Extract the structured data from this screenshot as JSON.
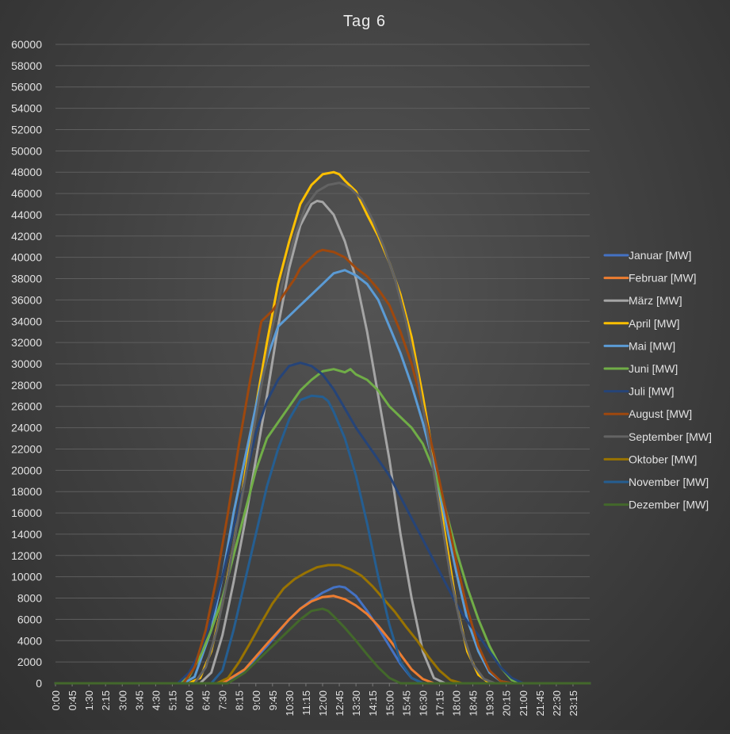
{
  "chart_data": {
    "type": "line",
    "title": "Tag 6",
    "xlabel": "",
    "ylabel": "",
    "ylim": [
      0,
      60000
    ],
    "y_ticks": [
      0,
      2000,
      4000,
      6000,
      8000,
      10000,
      12000,
      14000,
      16000,
      18000,
      20000,
      22000,
      24000,
      26000,
      28000,
      30000,
      32000,
      34000,
      36000,
      38000,
      40000,
      42000,
      44000,
      46000,
      48000,
      50000,
      52000,
      54000,
      56000,
      58000,
      60000
    ],
    "x_tick_labels": [
      "0:00",
      "0:45",
      "1:30",
      "2:15",
      "3:00",
      "3:45",
      "4:30",
      "5:15",
      "6:00",
      "6:45",
      "7:30",
      "8:15",
      "9:00",
      "9:45",
      "10:30",
      "11:15",
      "12:00",
      "12:45",
      "13:30",
      "14:15",
      "15:00",
      "15:45",
      "16:30",
      "17:15",
      "18:00",
      "18:45",
      "19:30",
      "20:15",
      "21:00",
      "21:45",
      "22:30",
      "23:15"
    ],
    "x_unit": "hour of day",
    "xlim": [
      0,
      24
    ],
    "grid": true,
    "legend_position": "right",
    "series": [
      {
        "name": "Januar [MW]",
        "color": "#4472C4",
        "x": [
          0,
          7.5,
          8.5,
          9.5,
          10.5,
          11,
          11.5,
          12,
          12.5,
          12.75,
          13,
          13.5,
          14,
          14.5,
          15,
          15.5,
          16,
          16.5,
          24
        ],
        "values": [
          0,
          0,
          1200,
          3500,
          6000,
          7000,
          7800,
          8500,
          9000,
          9100,
          9000,
          8200,
          6800,
          5200,
          3500,
          1800,
          500,
          0,
          0
        ]
      },
      {
        "name": "Februar [MW]",
        "color": "#ED7D31",
        "x": [
          0,
          7.5,
          8.5,
          9.5,
          10.5,
          11,
          11.5,
          12,
          12.5,
          13,
          13.5,
          14,
          14.5,
          15,
          15.5,
          16,
          16.5,
          17,
          24
        ],
        "values": [
          0,
          0,
          1300,
          3700,
          6000,
          7000,
          7700,
          8100,
          8200,
          7900,
          7300,
          6500,
          5400,
          4100,
          2700,
          1300,
          400,
          0,
          0
        ]
      },
      {
        "name": "März [MW]",
        "color": "#A5A5A5",
        "x": [
          0,
          6.5,
          7,
          7.5,
          8,
          8.5,
          9,
          9.5,
          10,
          10.5,
          11,
          11.5,
          11.75,
          12,
          12.5,
          13,
          13.5,
          14,
          14.5,
          15,
          15.5,
          16,
          16.5,
          17,
          17.5,
          18,
          24
        ],
        "values": [
          0,
          0,
          1000,
          4500,
          9500,
          15000,
          21000,
          27000,
          33500,
          39000,
          43000,
          45000,
          45300,
          45200,
          44000,
          41500,
          38000,
          33000,
          27000,
          21000,
          14000,
          8000,
          3000,
          500,
          0,
          0,
          0
        ]
      },
      {
        "name": "April [MW]",
        "color": "#FFC000",
        "x": [
          0,
          6,
          6.5,
          7,
          7.5,
          8,
          8.5,
          9,
          9.5,
          10,
          10.5,
          11,
          11.5,
          12,
          12.5,
          12.75,
          13,
          13.5,
          14,
          14.5,
          15,
          15.5,
          16,
          16.5,
          17,
          17.5,
          18,
          18.5,
          19,
          19.5,
          20,
          20.5,
          21,
          24
        ],
        "values": [
          0,
          0,
          500,
          3000,
          7500,
          13000,
          19500,
          26000,
          32000,
          37500,
          41500,
          45000,
          46800,
          47800,
          48000,
          47800,
          47200,
          46200,
          44000,
          42000,
          39500,
          36500,
          32500,
          27000,
          21000,
          14000,
          7500,
          3000,
          800,
          0,
          0,
          0,
          0,
          0
        ]
      },
      {
        "name": "Mai [MW]",
        "color": "#5B9BD5",
        "x": [
          0,
          5.75,
          6.25,
          7,
          7.5,
          8,
          8.5,
          9,
          9.5,
          10,
          10.5,
          11,
          11.5,
          12,
          12.5,
          13,
          13.5,
          14,
          14.5,
          15,
          15.5,
          16,
          16.5,
          17,
          17.5,
          18,
          18.5,
          19,
          19.5,
          20,
          20.5,
          21,
          24
        ],
        "values": [
          0,
          0,
          600,
          5000,
          10000,
          16000,
          21000,
          26000,
          30500,
          33500,
          34500,
          35500,
          36500,
          37500,
          38500,
          38800,
          38300,
          37500,
          36000,
          33500,
          31000,
          28000,
          24500,
          20500,
          15500,
          10500,
          6000,
          3000,
          1000,
          200,
          0,
          0,
          0
        ]
      },
      {
        "name": "Juni [MW]",
        "color": "#70AD47",
        "x": [
          0,
          5.5,
          6,
          6.5,
          7,
          7.5,
          8,
          8.5,
          9,
          9.5,
          10,
          10.5,
          11,
          11.5,
          12,
          12.5,
          13,
          13.25,
          13.5,
          14,
          14.5,
          15,
          15.5,
          16,
          16.5,
          17,
          17.5,
          18,
          18.5,
          19,
          19.5,
          20,
          20.5,
          21,
          24
        ],
        "values": [
          0,
          0,
          600,
          2500,
          5000,
          8000,
          12000,
          16000,
          20000,
          23000,
          24500,
          26000,
          27500,
          28500,
          29300,
          29500,
          29200,
          29500,
          29000,
          28500,
          27500,
          26000,
          25000,
          24000,
          22500,
          20000,
          16500,
          12500,
          9000,
          6000,
          3500,
          1500,
          300,
          0,
          0
        ]
      },
      {
        "name": "Juli [MW]",
        "color": "#264478",
        "x": [
          0,
          5.5,
          6,
          6.5,
          7,
          7.5,
          8,
          8.5,
          9,
          9.5,
          10,
          10.5,
          11,
          11.5,
          12,
          12.5,
          13,
          13.5,
          14,
          14.5,
          15,
          15.5,
          16,
          16.5,
          17,
          17.5,
          18,
          18.5,
          19,
          19.5,
          20,
          20.5,
          21,
          24
        ],
        "values": [
          0,
          0,
          1000,
          3000,
          6000,
          10000,
          14500,
          19000,
          23500,
          26500,
          28500,
          29800,
          30100,
          29800,
          29000,
          27600,
          25800,
          24000,
          22500,
          21000,
          19500,
          17500,
          15500,
          13500,
          11500,
          9500,
          7500,
          5800,
          4500,
          3000,
          1500,
          500,
          0,
          0
        ]
      },
      {
        "name": "August [MW]",
        "color": "#9E480E",
        "x": [
          0,
          5.75,
          6.25,
          6.75,
          7.25,
          7.75,
          8.25,
          8.75,
          9.25,
          9.75,
          10.25,
          10.75,
          11,
          11.25,
          11.5,
          11.75,
          12,
          12.5,
          13,
          13.5,
          14,
          14.5,
          15,
          15.5,
          16,
          16.5,
          17,
          17.5,
          18,
          18.5,
          19,
          19.5,
          20,
          20.5,
          21,
          24
        ],
        "values": [
          0,
          0,
          1500,
          5000,
          10000,
          16000,
          22500,
          28500,
          34000,
          35000,
          36500,
          38000,
          39000,
          39500,
          40000,
          40500,
          40700,
          40500,
          40000,
          39000,
          38200,
          37000,
          35500,
          33000,
          30000,
          26000,
          21500,
          16500,
          11500,
          7000,
          3500,
          1200,
          200,
          0,
          0,
          0
        ]
      },
      {
        "name": "September [MW]",
        "color": "#636363",
        "x": [
          0,
          6.25,
          6.75,
          7.25,
          7.75,
          8.25,
          8.75,
          9.25,
          9.75,
          10.25,
          10.75,
          11.25,
          11.75,
          12.25,
          12.75,
          13,
          13.25,
          13.75,
          14.25,
          14.75,
          15.25,
          15.75,
          16.25,
          16.75,
          17.25,
          17.75,
          18.25,
          18.75,
          19.25,
          19.75,
          20.25,
          24
        ],
        "values": [
          0,
          0,
          1500,
          5000,
          10000,
          16000,
          22000,
          28000,
          33500,
          38000,
          42000,
          44800,
          46200,
          46800,
          47000,
          46800,
          46500,
          45500,
          43500,
          41000,
          38000,
          34000,
          29000,
          23000,
          16500,
          10000,
          5000,
          1800,
          400,
          0,
          0,
          0
        ]
      },
      {
        "name": "Oktober [MW]",
        "color": "#997300",
        "x": [
          0,
          7.25,
          7.75,
          8.25,
          8.75,
          9.25,
          9.75,
          10.25,
          10.75,
          11.25,
          11.75,
          12.25,
          12.75,
          13.25,
          13.75,
          14.25,
          14.75,
          15.25,
          15.75,
          16.25,
          16.75,
          17.25,
          17.75,
          18.25,
          24
        ],
        "values": [
          0,
          0,
          500,
          2000,
          3800,
          5700,
          7500,
          8900,
          9800,
          10400,
          10900,
          11100,
          11100,
          10700,
          10100,
          9100,
          7900,
          6700,
          5300,
          4000,
          2500,
          1200,
          300,
          0,
          0
        ]
      },
      {
        "name": "November [MW]",
        "color": "#255E91",
        "x": [
          0,
          7,
          7.5,
          8,
          8.5,
          9,
          9.5,
          10,
          10.5,
          11,
          11.5,
          12,
          12.25,
          12.5,
          13,
          13.5,
          14,
          14.5,
          15,
          15.5,
          16,
          16.5,
          17,
          24
        ],
        "values": [
          0,
          0,
          1200,
          5000,
          9500,
          14000,
          18500,
          22000,
          24800,
          26600,
          27000,
          26900,
          26500,
          25500,
          23000,
          19500,
          15000,
          10000,
          5500,
          2000,
          500,
          0,
          0,
          0
        ]
      },
      {
        "name": "Dezember [MW]",
        "color": "#43682B",
        "x": [
          0,
          7.75,
          8.5,
          9.5,
          10.5,
          11,
          11.5,
          12,
          12.25,
          12.5,
          13,
          13.5,
          14,
          14.5,
          15,
          15.5,
          16,
          24
        ],
        "values": [
          0,
          0,
          1000,
          3000,
          5000,
          6000,
          6800,
          7000,
          6800,
          6300,
          5200,
          4000,
          2700,
          1500,
          500,
          0,
          0,
          0
        ]
      }
    ]
  }
}
